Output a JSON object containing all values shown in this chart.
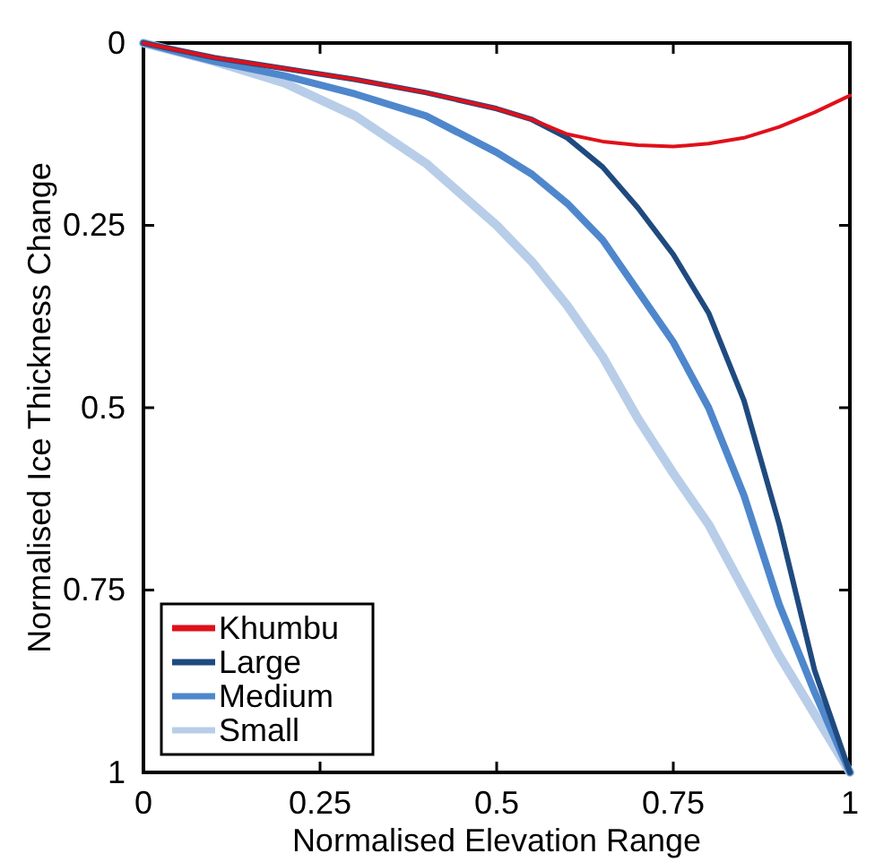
{
  "chart_data": {
    "type": "line",
    "xlabel": "Normalised Elevation Range",
    "ylabel": "Normalised Ice Thickness Change",
    "xlim": [
      0,
      1
    ],
    "xticks": [
      0,
      0.25,
      0.5,
      0.75,
      1
    ],
    "ylim": [
      1,
      0
    ],
    "yticks": [
      0,
      0.25,
      0.5,
      0.75,
      1
    ],
    "grid": false,
    "legend": "bottom left",
    "line_style": "solid",
    "marker": "none",
    "x": [
      0,
      0.1,
      0.2,
      0.3,
      0.4,
      0.5,
      0.55,
      0.6,
      0.65,
      0.7,
      0.75,
      0.8,
      0.85,
      0.9,
      0.95,
      1
    ],
    "series": [
      {
        "name": "Small",
        "color": "#b8cde8",
        "values": [
          0,
          0.025,
          0.055,
          0.1,
          0.165,
          0.25,
          0.3,
          0.36,
          0.43,
          0.515,
          0.59,
          0.66,
          0.75,
          0.84,
          0.92,
          1
        ]
      },
      {
        "name": "Medium",
        "color": "#4f87cc",
        "values": [
          0,
          0.025,
          0.045,
          0.07,
          0.1,
          0.15,
          0.18,
          0.22,
          0.27,
          0.34,
          0.41,
          0.5,
          0.62,
          0.77,
          0.89,
          1
        ]
      },
      {
        "name": "Large",
        "color": "#1f4a7f",
        "values": [
          0,
          0.02,
          0.035,
          0.05,
          0.068,
          0.09,
          0.105,
          0.13,
          0.17,
          0.226,
          0.29,
          0.37,
          0.49,
          0.66,
          0.86,
          1
        ]
      },
      {
        "name": "Khumbu",
        "color": "#e0101a",
        "values": [
          0,
          0.02,
          0.035,
          0.05,
          0.068,
          0.09,
          0.105,
          0.125,
          0.135,
          0.14,
          0.142,
          0.138,
          0.13,
          0.115,
          0.095,
          0.072
        ]
      }
    ]
  }
}
